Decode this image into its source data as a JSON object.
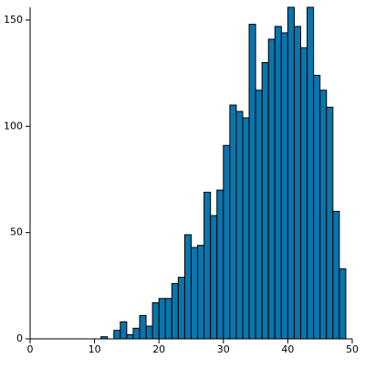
{
  "chart_data": {
    "type": "histogram",
    "bins": [
      11,
      12,
      13,
      14,
      15,
      16,
      17,
      18,
      19,
      20,
      21,
      22,
      23,
      24,
      25,
      26,
      27,
      28,
      29,
      30,
      31,
      32,
      33,
      34,
      35,
      36,
      37,
      38,
      39,
      40,
      41,
      42,
      43,
      44,
      45,
      46,
      47,
      48,
      49
    ],
    "values": [
      1,
      0,
      4,
      8,
      2,
      5,
      11,
      6,
      17,
      19,
      19,
      26,
      29,
      49,
      43,
      44,
      69,
      58,
      70,
      91,
      110,
      107,
      104,
      148,
      117,
      130,
      141,
      147,
      144,
      156,
      147,
      137,
      156,
      124,
      117,
      109,
      60,
      33
    ],
    "color": "#0a75ad",
    "xlim": [
      0,
      50
    ],
    "xticks": [
      0,
      10,
      20,
      30,
      40,
      50
    ],
    "ylim": [
      0,
      156
    ],
    "yticks": [
      0,
      50,
      100,
      150
    ]
  }
}
